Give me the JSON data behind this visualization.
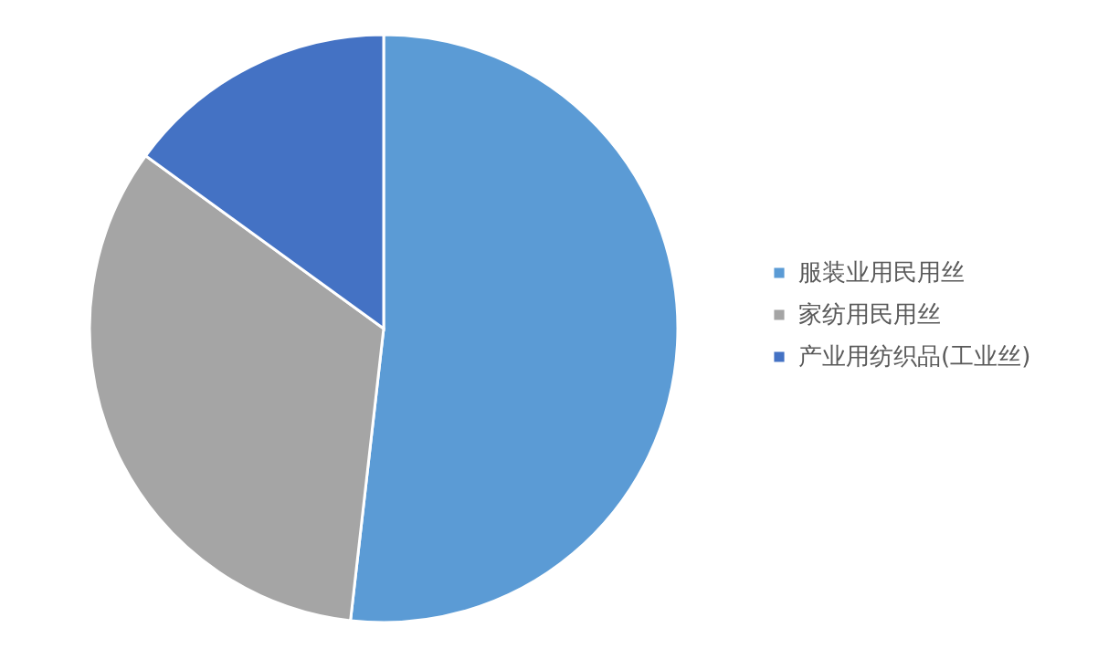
{
  "chart_data": {
    "type": "pie",
    "categories": [
      "服装业用民用丝",
      "家纺用民用丝",
      "产业用纺织品(工业丝)"
    ],
    "values": [
      51.8,
      33.2,
      15.0
    ],
    "colors": [
      "#5b9bd5",
      "#a5a5a5",
      "#4472c4"
    ],
    "legend": "right"
  }
}
